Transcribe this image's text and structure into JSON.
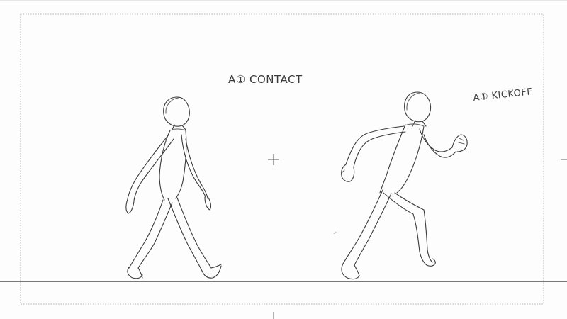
{
  "labels": {
    "contact": "A① CONTACT",
    "kickoff": "A① KICKOFF"
  },
  "figures": [
    {
      "name": "walking-figure",
      "pose": "contact"
    },
    {
      "name": "running-figure",
      "pose": "kickoff"
    }
  ],
  "colors": {
    "background": "#fdfdfd",
    "pencil": "#3a3a3a",
    "guide": "#b8b8b8"
  }
}
